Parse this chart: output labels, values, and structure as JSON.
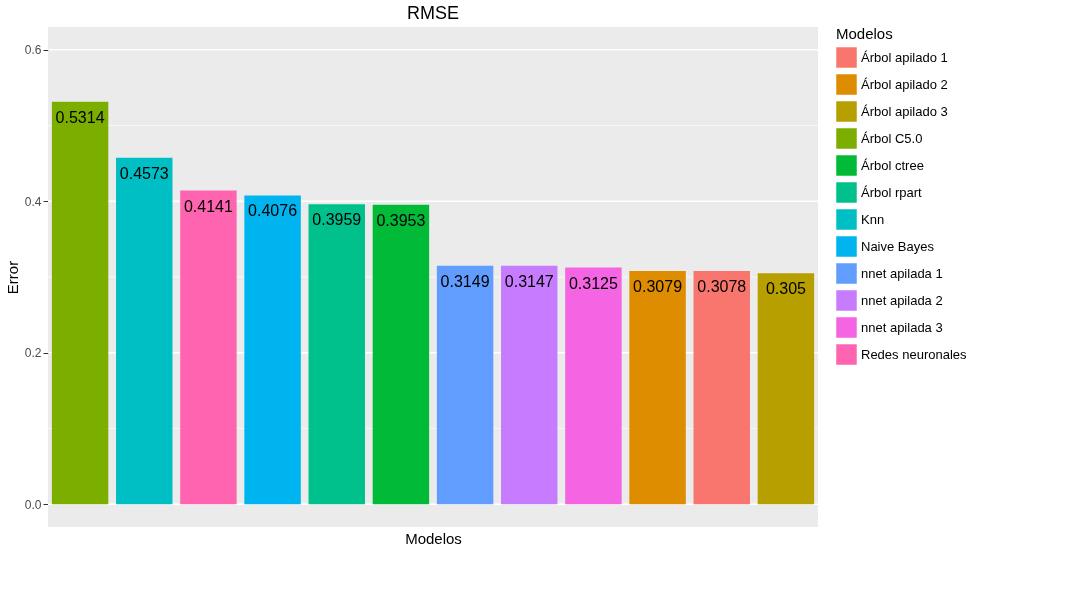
{
  "chart_data": {
    "type": "bar",
    "title": "RMSE",
    "xlabel": "Modelos",
    "ylabel": "Error",
    "legend_title": "Modelos",
    "categories": [
      null,
      null,
      null,
      null,
      null,
      null,
      null,
      null,
      null,
      null,
      null,
      null
    ],
    "series": [
      {
        "name": "Árbol apilado 1",
        "color": "#f8766d",
        "values": [
          null,
          null,
          null,
          null,
          null,
          null,
          null,
          null,
          null,
          null,
          0.3078,
          null
        ]
      },
      {
        "name": "Árbol apilado 2",
        "color": "#de8c00",
        "values": [
          null,
          null,
          null,
          null,
          null,
          null,
          null,
          null,
          null,
          0.3079,
          null,
          null
        ]
      },
      {
        "name": "Árbol apilado 3",
        "color": "#b79f00",
        "values": [
          null,
          null,
          null,
          null,
          null,
          null,
          null,
          null,
          null,
          null,
          null,
          0.305
        ]
      },
      {
        "name": "Árbol C5.0",
        "color": "#7cae00",
        "values": [
          0.5314,
          null,
          null,
          null,
          null,
          null,
          null,
          null,
          null,
          null,
          null,
          null
        ]
      },
      {
        "name": "Árbol ctree",
        "color": "#00ba38",
        "values": [
          null,
          null,
          null,
          null,
          null,
          0.3953,
          null,
          null,
          null,
          null,
          null,
          null
        ]
      },
      {
        "name": "Árbol rpart",
        "color": "#00c08b",
        "values": [
          null,
          null,
          null,
          null,
          0.3959,
          null,
          null,
          null,
          null,
          null,
          null,
          null
        ]
      },
      {
        "name": "Knn",
        "color": "#00bfc4",
        "values": [
          null,
          0.4573,
          null,
          null,
          null,
          null,
          null,
          null,
          null,
          null,
          null,
          null
        ]
      },
      {
        "name": "Naive Bayes",
        "color": "#00b4f0",
        "values": [
          null,
          null,
          null,
          0.4076,
          null,
          null,
          null,
          null,
          null,
          null,
          null,
          null
        ]
      },
      {
        "name": "nnet apilada 1",
        "color": "#619cff",
        "values": [
          null,
          null,
          null,
          null,
          null,
          null,
          0.3149,
          null,
          null,
          null,
          null,
          null
        ]
      },
      {
        "name": "nnet apilada 2",
        "color": "#c77cff",
        "values": [
          null,
          null,
          null,
          null,
          null,
          null,
          null,
          0.3147,
          null,
          null,
          null,
          null
        ]
      },
      {
        "name": "nnet apilada 3",
        "color": "#f564e3",
        "values": [
          null,
          null,
          null,
          null,
          null,
          null,
          null,
          null,
          0.3125,
          null,
          null,
          null
        ]
      },
      {
        "name": "Redes neuronales",
        "color": "#ff64b0",
        "values": [
          null,
          null,
          0.4141,
          null,
          null,
          null,
          null,
          null,
          null,
          null,
          null,
          null
        ]
      }
    ],
    "ylim": [
      -0.03,
      0.63
    ],
    "yticks": [
      {
        "value": 0,
        "label": "0.0"
      },
      {
        "value": 0.1,
        "label": null
      },
      0.2,
      {
        "value": 0.3,
        "label": null
      },
      0.4,
      {
        "value": 0.5,
        "label": null
      },
      0.6
    ],
    "grid": "y",
    "legend": "right",
    "data_labels": true
  }
}
